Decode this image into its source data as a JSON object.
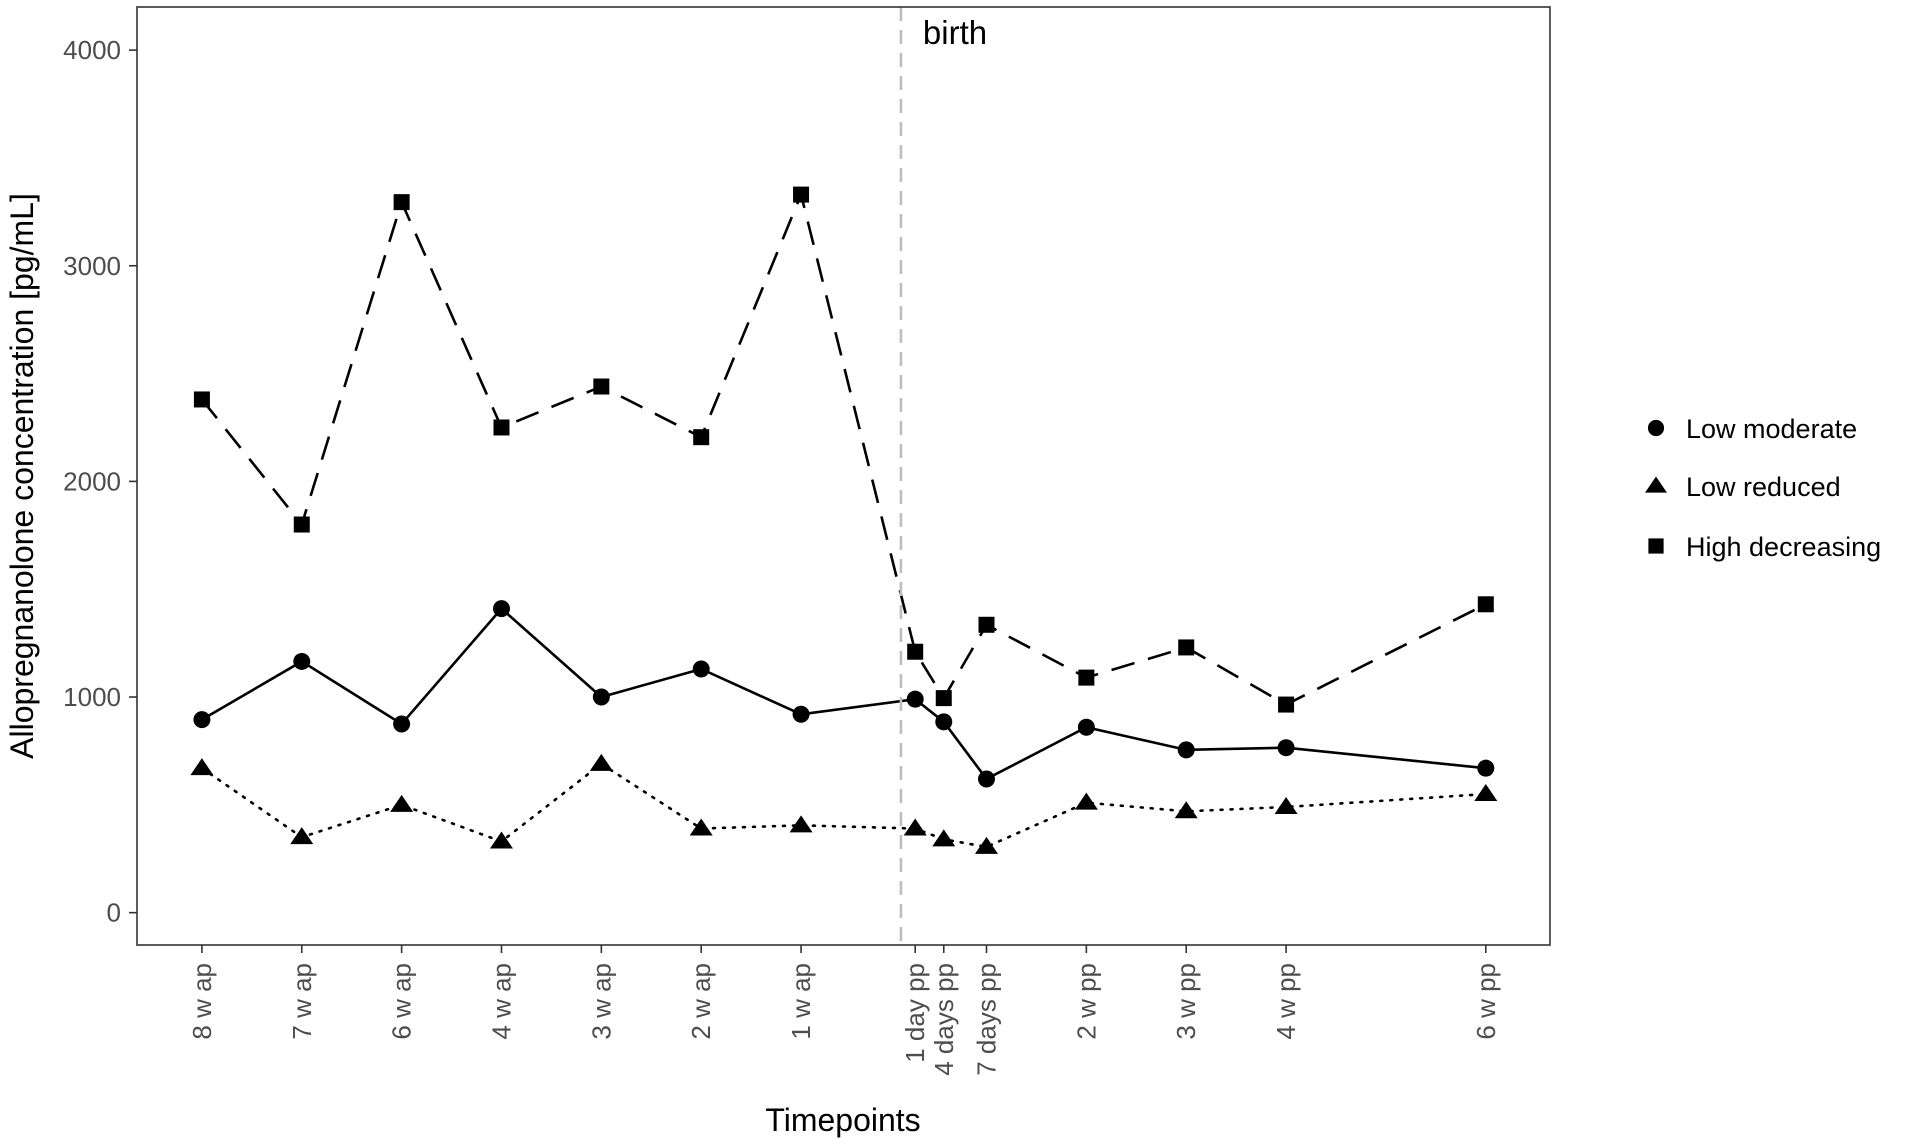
{
  "chart_data": {
    "type": "line",
    "title": "",
    "xlabel": "Timepoints",
    "ylabel": "Allopregnanolone concentration [pg/mL]",
    "ylim": [
      -150,
      4200
    ],
    "yticks": [
      0,
      1000,
      2000,
      3000,
      4000
    ],
    "grid": false,
    "legend_position": "right",
    "categories": [
      "8 w ap",
      "7 w ap",
      "6 w ap",
      "4 w ap",
      "3 w ap",
      "2 w ap",
      "1 w ap",
      "1 day pp",
      "4 days pp",
      "7 days pp",
      "2 w pp",
      "3 w pp",
      "4 w pp",
      "6 w pp"
    ],
    "x": [
      0,
      1,
      2,
      3,
      4,
      5,
      6,
      7.143,
      7.429,
      7.857,
      8.857,
      9.857,
      10.857,
      12.857
    ],
    "xlim": [
      -0.65,
      13.5
    ],
    "series": [
      {
        "name": "Low moderate",
        "marker": "circle",
        "line": "solid",
        "values": [
          895,
          1165,
          875,
          1410,
          1000,
          1130,
          920,
          990,
          885,
          620,
          860,
          755,
          765,
          670
        ]
      },
      {
        "name": "Low reduced",
        "marker": "triangle",
        "line": "dotted",
        "values": [
          670,
          350,
          500,
          330,
          690,
          390,
          405,
          390,
          340,
          305,
          510,
          470,
          490,
          550
        ]
      },
      {
        "name": "High decreasing",
        "marker": "square",
        "line": "dashed",
        "values": [
          2380,
          1800,
          3295,
          2250,
          2440,
          2205,
          3330,
          1210,
          995,
          1335,
          1090,
          1230,
          965,
          1430
        ]
      }
    ],
    "annotations": [
      {
        "text": "birth",
        "x": 7.0,
        "line_color": "#bebebe",
        "line_style": "dashed"
      }
    ],
    "colors": {
      "series": "#000000",
      "axis_text": "#4d4d4d",
      "panel_border": "#333333",
      "birth_line": "#bebebe"
    }
  }
}
